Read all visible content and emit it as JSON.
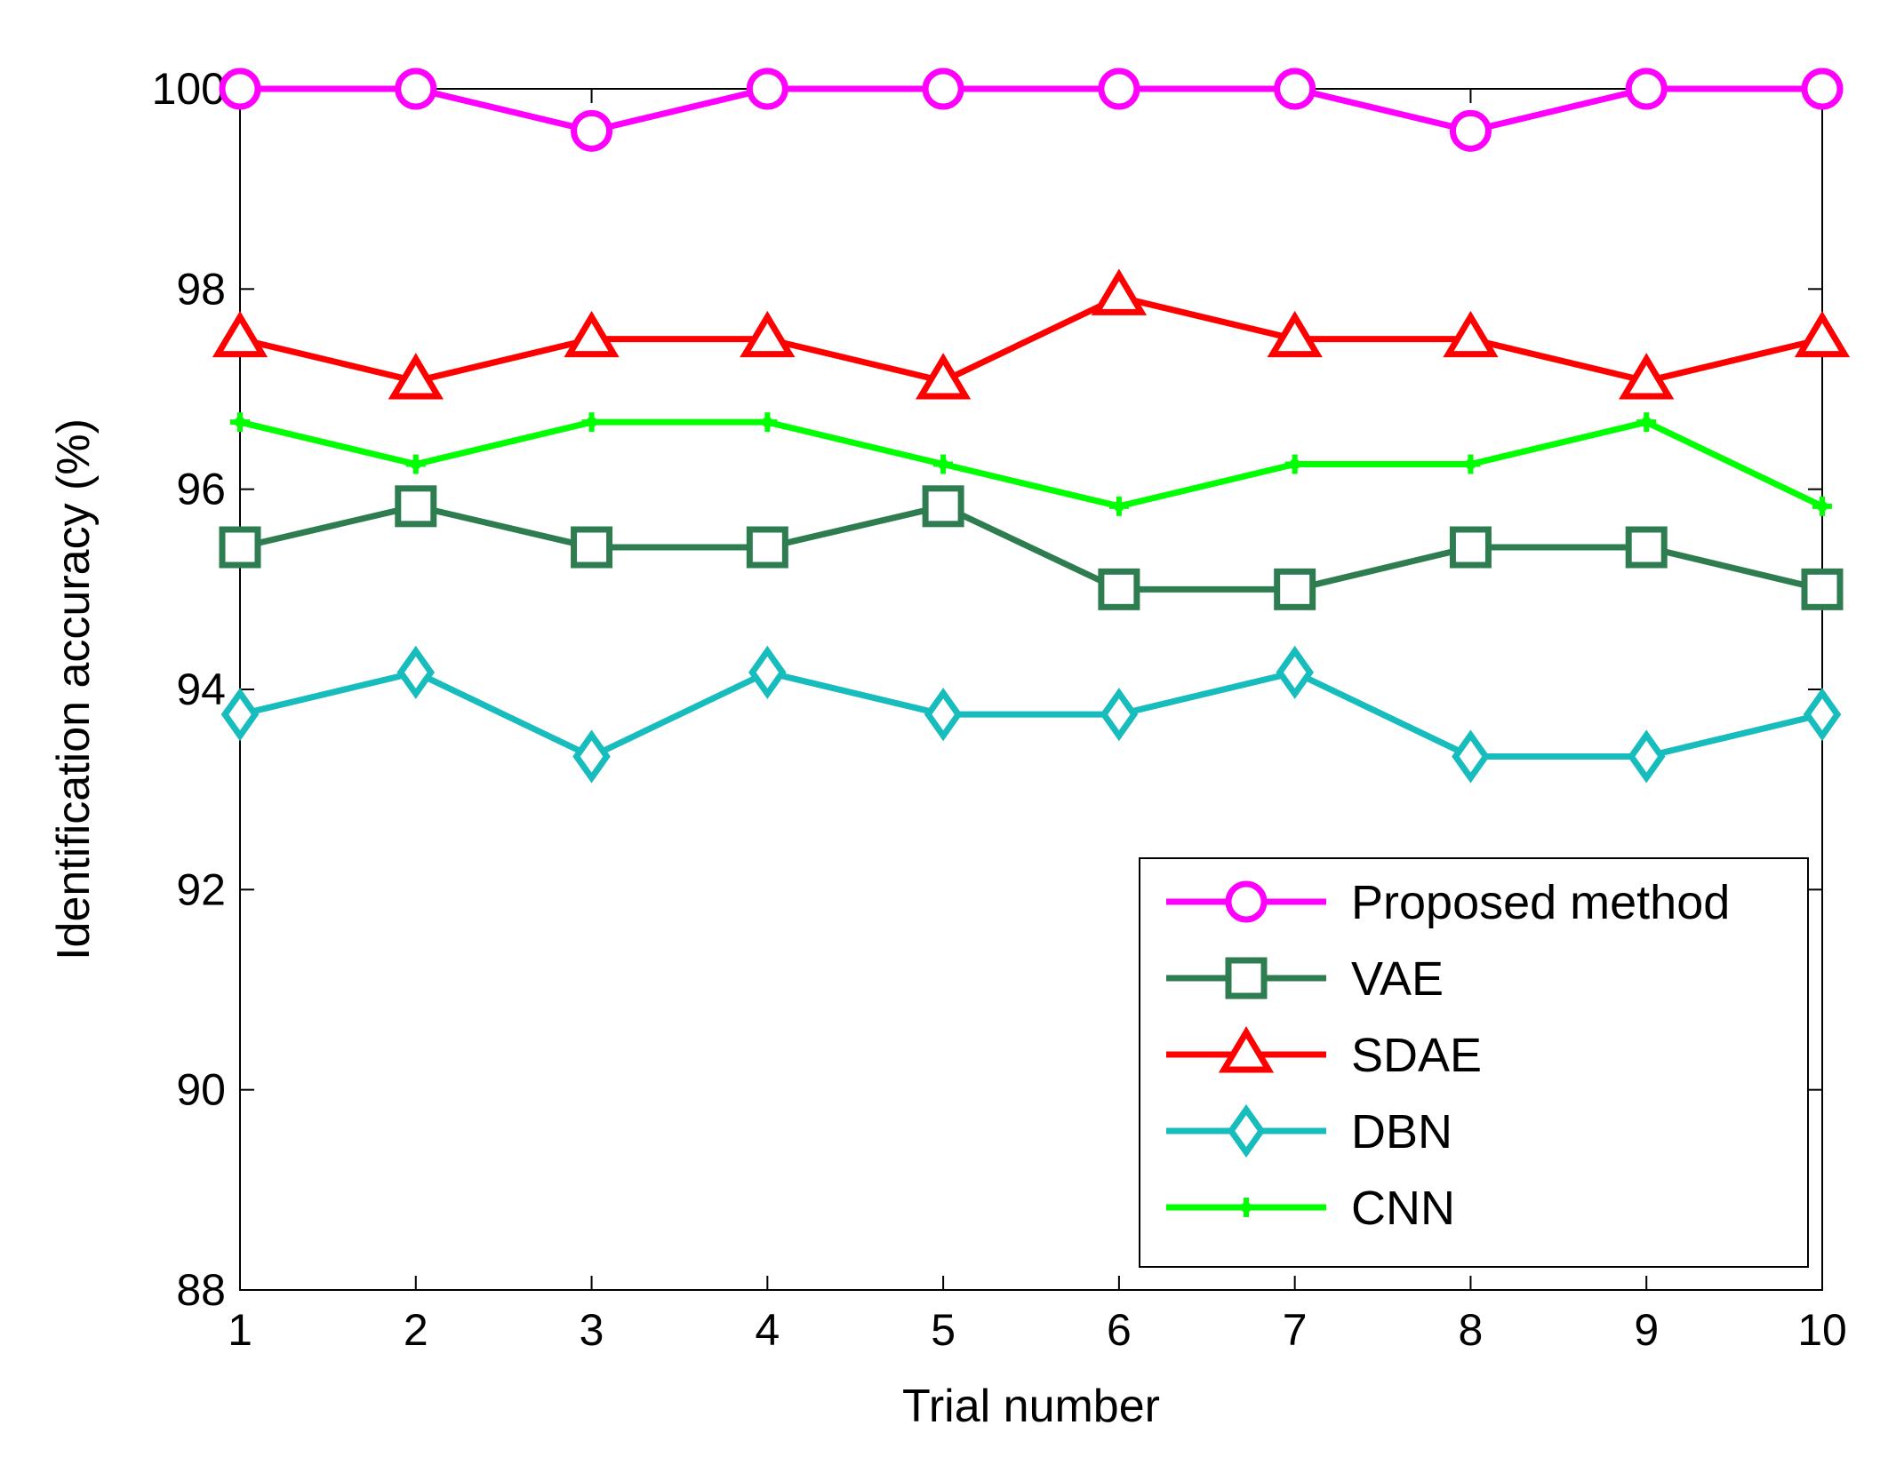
{
  "chart_data": {
    "type": "line",
    "title": "",
    "xlabel": "Trial number",
    "ylabel": "Identification accuracy (%)",
    "x": [
      1,
      2,
      3,
      4,
      5,
      6,
      7,
      8,
      9,
      10
    ],
    "xlim": [
      1,
      10
    ],
    "ylim": [
      88,
      100
    ],
    "xticks": [
      "1",
      "2",
      "3",
      "4",
      "5",
      "6",
      "7",
      "8",
      "9",
      "10"
    ],
    "yticks": [
      "88",
      "90",
      "92",
      "94",
      "96",
      "98",
      "100"
    ],
    "grid": false,
    "legend_position": "bottom-right",
    "series": [
      {
        "name": "Proposed method",
        "marker": "circle",
        "color": "#ff00ff",
        "values": [
          100,
          100,
          99.58,
          100,
          100,
          100,
          100,
          99.58,
          100,
          100
        ]
      },
      {
        "name": "VAE",
        "marker": "square",
        "color": "#2e7d50",
        "values": [
          95.42,
          95.83,
          95.42,
          95.42,
          95.83,
          95.0,
          95.0,
          95.42,
          95.42,
          95.0
        ]
      },
      {
        "name": "SDAE",
        "marker": "triangle",
        "color": "#ff0000",
        "values": [
          97.5,
          97.08,
          97.5,
          97.5,
          97.08,
          97.92,
          97.5,
          97.5,
          97.08,
          97.5
        ]
      },
      {
        "name": "DBN",
        "marker": "diamond",
        "color": "#17bcbc",
        "values": [
          93.75,
          94.17,
          93.33,
          94.17,
          93.75,
          93.75,
          94.17,
          93.33,
          93.33,
          93.75
        ]
      },
      {
        "name": "CNN",
        "marker": "plus",
        "color": "#00ff00",
        "values": [
          96.67,
          96.25,
          96.67,
          96.67,
          96.25,
          95.83,
          96.25,
          96.25,
          96.67,
          95.83
        ]
      }
    ]
  }
}
